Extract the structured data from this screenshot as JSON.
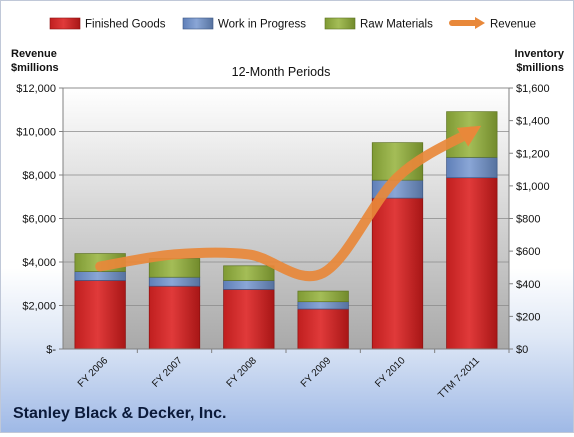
{
  "chart_data": {
    "type": "bar",
    "stacked": true,
    "subtitle": "12-Month Periods",
    "company": "Stanley Black & Decker, Inc.",
    "categories": [
      "FY 2006",
      "FY 2007",
      "FY 2008",
      "FY 2009",
      "FY 2010",
      "TTM 7-2011"
    ],
    "left_axis": {
      "label_line1": "Revenue",
      "label_line2": "$millions",
      "range": [
        0,
        12000
      ],
      "ticks": [
        0,
        2000,
        4000,
        6000,
        8000,
        10000,
        12000
      ],
      "tick_labels": [
        "$-",
        "$2,000",
        "$4,000",
        "$6,000",
        "$8,000",
        "$10,000",
        "$12,000"
      ]
    },
    "right_axis": {
      "label_line1": "Inventory",
      "label_line2": "$millions",
      "range": [
        0,
        1600
      ],
      "ticks": [
        0,
        200,
        400,
        600,
        800,
        1000,
        1200,
        1400,
        1600
      ],
      "tick_labels": [
        "$0",
        "$200",
        "$400",
        "$600",
        "$800",
        "$1,000",
        "$1,200",
        "$1,400",
        "$1,600"
      ]
    },
    "bar_series": [
      {
        "name": "Finished Goods",
        "color": "#cc2222",
        "axis": "right",
        "values": [
          420,
          385,
          365,
          245,
          925,
          1050
        ]
      },
      {
        "name": "Work in Progress",
        "color": "#6f8fc4",
        "axis": "right",
        "values": [
          55,
          55,
          55,
          45,
          110,
          125
        ]
      },
      {
        "name": "Raw Materials",
        "color": "#8faa3e",
        "axis": "right",
        "values": [
          110,
          115,
          90,
          65,
          230,
          280
        ]
      }
    ],
    "line_series": [
      {
        "name": "Revenue",
        "color": "#e8883a",
        "axis": "left",
        "values": [
          3800,
          4350,
          4350,
          3500,
          7900,
          10000
        ]
      }
    ],
    "legend_position": "top",
    "grid": true
  }
}
